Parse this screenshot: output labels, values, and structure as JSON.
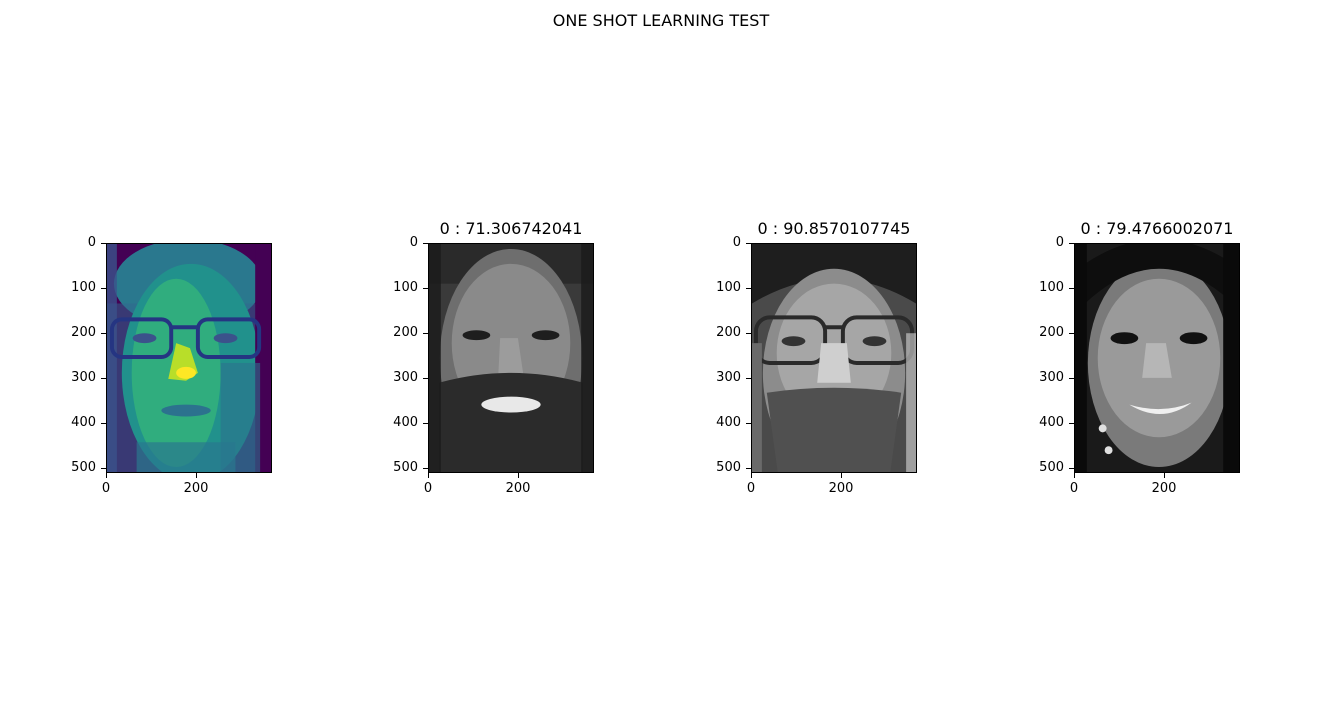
{
  "figure": {
    "suptitle": "ONE SHOT LEARNING TEST"
  },
  "panels": [
    {
      "title": "",
      "y_ticks": [
        "0",
        "100",
        "200",
        "300",
        "400",
        "500"
      ],
      "x_ticks": [
        "0",
        "200"
      ],
      "colormap": "viridis",
      "image": "face-glasses-viridis"
    },
    {
      "title": "0 : 71.306742041",
      "y_ticks": [
        "0",
        "100",
        "200",
        "300",
        "400",
        "500"
      ],
      "x_ticks": [
        "0",
        "200"
      ],
      "colormap": "gray",
      "image": "face-bearded-smiling"
    },
    {
      "title": "0 : 90.8570107745",
      "y_ticks": [
        "0",
        "100",
        "200",
        "300",
        "400",
        "500"
      ],
      "x_ticks": [
        "0",
        "200"
      ],
      "colormap": "gray",
      "image": "face-glasses-beard"
    },
    {
      "title": "0 : 79.4766002071",
      "y_ticks": [
        "0",
        "100",
        "200",
        "300",
        "400",
        "500"
      ],
      "x_ticks": [
        "0",
        "200"
      ],
      "colormap": "gray",
      "image": "face-woman-smiling"
    }
  ]
}
